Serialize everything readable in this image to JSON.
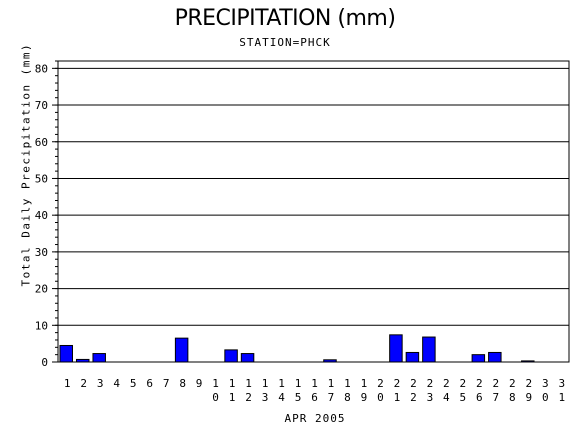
{
  "chart_data": {
    "type": "bar",
    "title": "PRECIPITATION (mm)",
    "subtitle": "STATION=PHCK",
    "xlabel": "APR 2005",
    "ylabel": "Total Daily Precipitation (mm)",
    "ylim": [
      0,
      82
    ],
    "yticks": [
      0,
      10,
      20,
      30,
      40,
      50,
      60,
      70,
      80
    ],
    "grid": true,
    "bar_color": "#0000ff",
    "categories": [
      "1",
      "2",
      "3",
      "4",
      "5",
      "6",
      "7",
      "8",
      "9",
      "10",
      "11",
      "12",
      "13",
      "14",
      "15",
      "16",
      "17",
      "18",
      "19",
      "20",
      "21",
      "22",
      "23",
      "24",
      "25",
      "26",
      "27",
      "28",
      "29",
      "30",
      "31"
    ],
    "values": [
      4.5,
      0.7,
      2.3,
      0,
      0,
      0,
      0,
      6.5,
      0,
      0,
      3.3,
      2.3,
      0,
      0,
      0,
      0,
      0.6,
      0,
      0,
      0,
      7.4,
      2.6,
      6.8,
      0,
      0,
      2.0,
      2.6,
      0,
      0.3,
      0,
      0
    ]
  }
}
